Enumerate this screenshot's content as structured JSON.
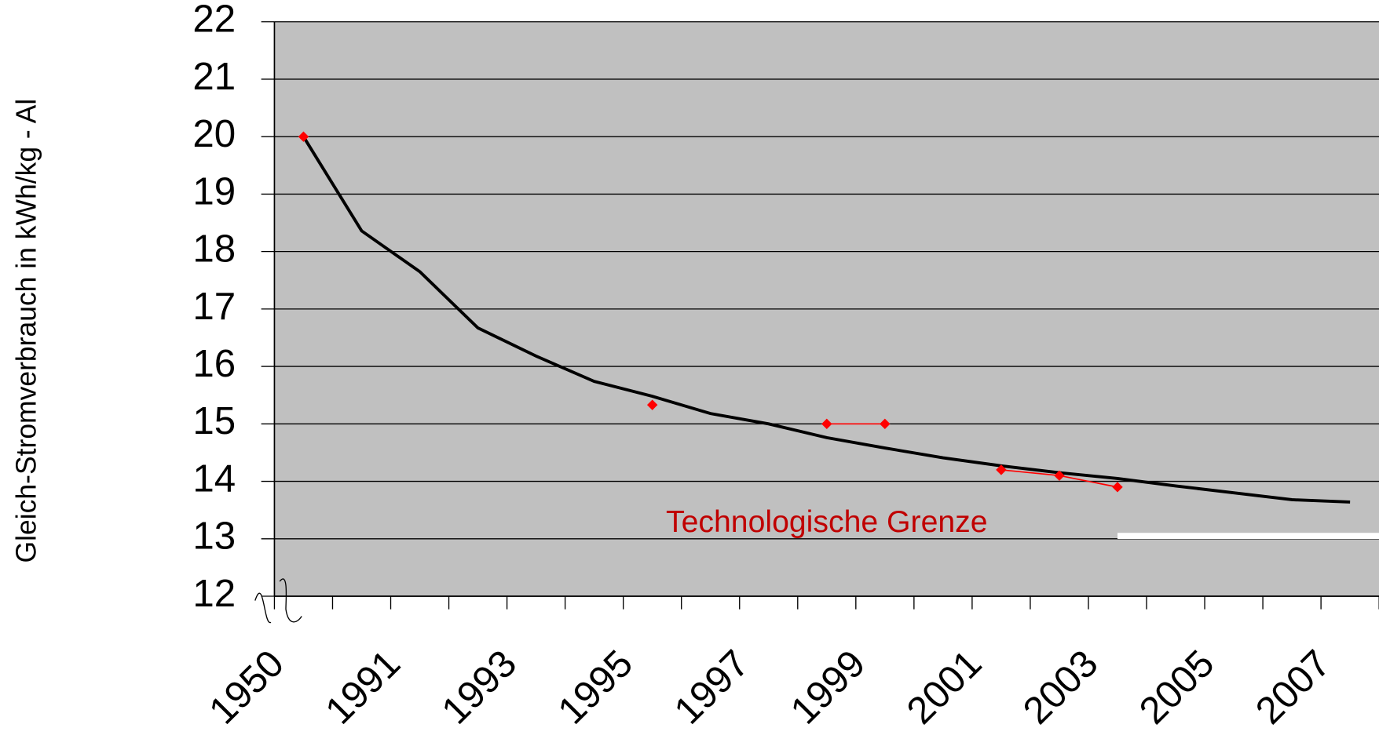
{
  "chart_data": {
    "type": "line",
    "y_label": "Gleich-Stromverbrauch in kWh/kg - Al",
    "annotation": "Technologische Grenze",
    "categories": [
      "1950",
      null,
      "1991",
      null,
      "1993",
      null,
      "1995",
      null,
      "1997",
      null,
      "1999",
      null,
      "2001",
      null,
      "2003",
      null,
      "2005",
      null,
      "2007"
    ],
    "series": [
      {
        "color": "#ff0000",
        "marker": "diamond",
        "values": [
          20,
          null,
          null,
          null,
          null,
          null,
          15.33,
          null,
          null,
          15.0,
          15.0,
          null,
          14.2,
          14.1,
          13.9,
          null,
          null,
          null,
          null
        ]
      },
      {
        "color": "#000000",
        "marker": "none",
        "values": [
          20,
          18.36,
          17.65,
          16.67,
          16.18,
          15.74,
          15.48,
          15.18,
          15.0,
          14.76,
          14.58,
          14.41,
          14.27,
          14.15,
          14.05,
          13.92,
          13.8,
          13.68,
          13.64
        ]
      }
    ],
    "limit": {
      "value": 13.05,
      "color": "#ffffff"
    },
    "ylim": [
      12,
      22
    ],
    "yticks": [
      12,
      13,
      14,
      15,
      16,
      17,
      18,
      19,
      20,
      21,
      22
    ],
    "grid": true,
    "plot_background": "#c0c0c0"
  }
}
